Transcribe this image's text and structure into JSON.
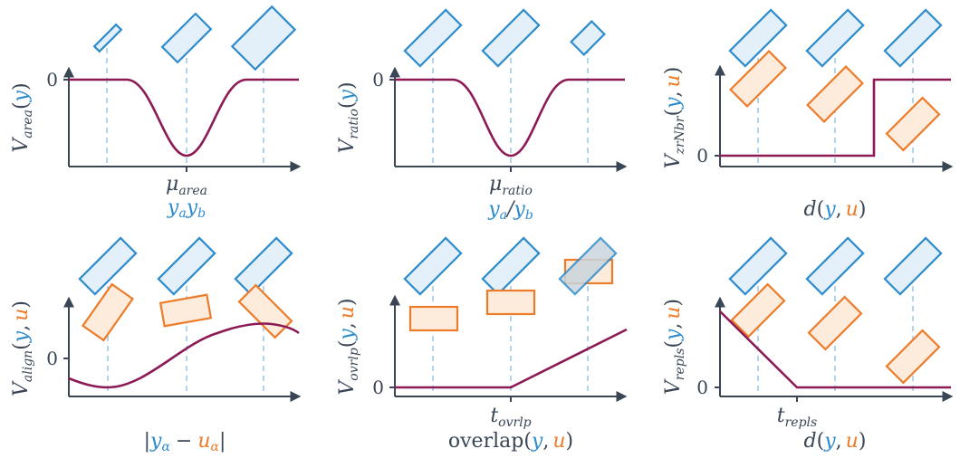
{
  "colors": {
    "axis": "#3a4656",
    "curve": "#8c1a55",
    "blue": "#2d8bcb",
    "orange": "#ec7c2a",
    "guide": "#8ec5e6"
  },
  "tick_zero": "0",
  "panels": {
    "area": {
      "ylabel": "V",
      "ysub": "area",
      "ypar_open": "(",
      "yvar": "y",
      "ypar_close": ")",
      "mu": "μ",
      "mu_sub": "area",
      "xvar1": "y",
      "xsub1": "a",
      "xvar2": "y",
      "xsub2": "b"
    },
    "ratio": {
      "ylabel": "V",
      "ysub": "ratio",
      "ypar_open": "(",
      "yvar": "y",
      "ypar_close": ")",
      "mu": "μ",
      "mu_sub": "ratio",
      "xvar1": "y",
      "xsub1": "a",
      "xslash": "/",
      "xvar2": "y",
      "xsub2": "b"
    },
    "zrnbr": {
      "ylabel": "V",
      "ysub": "zrNbr",
      "ypar_open": "(",
      "yvar": "y",
      "ycomma": ",",
      "uvar": "u",
      "ypar_close": ")",
      "xfunc": "d",
      "xpar_open": "(",
      "xvar": "y",
      "xcomma": ",",
      "xuvar": "u",
      "xpar_close": ")"
    },
    "align": {
      "ylabel": "V",
      "ysub": "align",
      "ypar_open": "(",
      "yvar": "y",
      "ycomma": ",",
      "uvar": "u",
      "ypar_close": ")",
      "bar_left": "|",
      "xvar": "y",
      "xsub": "α",
      "minus": "−",
      "xuvar": "u",
      "xusub": "α",
      "bar_right": "|"
    },
    "overlap": {
      "ylabel": "V",
      "ysub": "ovrlp",
      "ypar_open": "(",
      "yvar": "y",
      "ycomma": ",",
      "uvar": "u",
      "ypar_close": ")",
      "t": "t",
      "t_sub": "ovrlp",
      "xfunc": "overlap",
      "xpar_open": "(",
      "xvar": "y",
      "xcomma": ",",
      "xuvar": "u",
      "xpar_close": ")"
    },
    "repls": {
      "ylabel": "V",
      "ysub": "repls",
      "ypar_open": "(",
      "yvar": "y",
      "ycomma": ",",
      "uvar": "u",
      "ypar_close": ")",
      "t": "t",
      "t_sub": "repls",
      "xfunc": "d",
      "xpar_open": "(",
      "xvar": "y",
      "xcomma": ",",
      "xuvar": "u",
      "xpar_close": ")"
    }
  }
}
